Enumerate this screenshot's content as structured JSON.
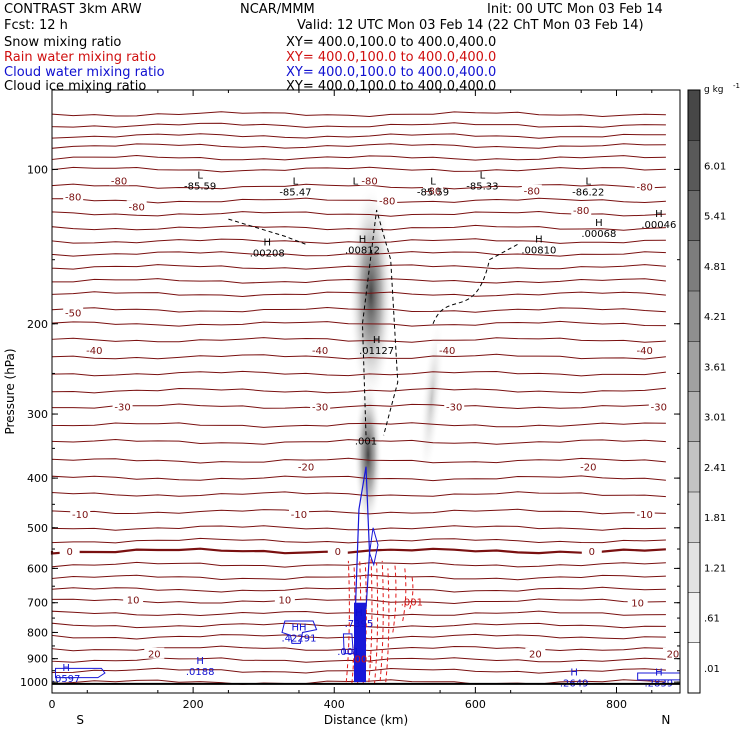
{
  "header": {
    "model": "CONTRAST  3km ARW",
    "org": "NCAR/MMM",
    "init": "Init: 00 UTC Mon 03 Feb 14",
    "fcst": "Fcst:   12 h",
    "valid": "Valid: 12 UTC Mon 03 Feb 14 (22 ChT Mon 03 Feb 14)",
    "fields": [
      {
        "label": "Snow mixing ratio",
        "xy": "XY= 400.0,100.0 to 400.0,400.0",
        "color": "#000000"
      },
      {
        "label": "Rain water mixing ratio",
        "xy": "XY= 400.0,100.0 to 400.0,400.0",
        "color": "#d01010"
      },
      {
        "label": "Cloud water mixing ratio",
        "xy": "XY= 400.0,100.0 to 400.0,400.0",
        "color": "#1010d0"
      },
      {
        "label": "Cloud ice mixing ratio",
        "xy": "XY= 400.0,100.0 to 400.0,400.0",
        "color": "#000000"
      }
    ]
  },
  "chart_data": {
    "type": "heatmap",
    "xlabel": "Distance (km)",
    "ylabel": "Pressure (hPa)",
    "xlim": [
      0,
      890
    ],
    "ylim": [
      1050,
      70
    ],
    "y_scale": "log",
    "x_ticks": [
      "0",
      "200",
      "400",
      "600",
      "800"
    ],
    "y_ticks": [
      "100",
      "200",
      "300",
      "400",
      "500",
      "600",
      "700",
      "800",
      "900",
      "1000"
    ],
    "x_ends": {
      "left": "S",
      "right": "N"
    },
    "colorbar": {
      "unit": "g kg",
      "unit_exp": "-1",
      "labels": [
        ".01",
        ".61",
        "1.21",
        "1.81",
        "2.41",
        "3.01",
        "3.61",
        "4.21",
        "4.81",
        "5.41",
        "6.01"
      ],
      "colors": [
        "#ffffff",
        "#f2f2f2",
        "#e3e3e3",
        "#d3d3d3",
        "#c3c3c3",
        "#b2b2b2",
        "#a1a1a1",
        "#8f8f8f",
        "#7d7d7d",
        "#6b6b6b",
        "#595959",
        "#474747"
      ]
    },
    "temperature_labels": [
      {
        "p": 105,
        "x": 95,
        "text": "-80"
      },
      {
        "p": 113,
        "x": 30,
        "text": "-80"
      },
      {
        "p": 118,
        "x": 120,
        "text": "-80"
      },
      {
        "p": 105,
        "x": 450,
        "text": "-80"
      },
      {
        "p": 115,
        "x": 475,
        "text": "-80"
      },
      {
        "p": 110,
        "x": 540,
        "text": "-80"
      },
      {
        "p": 110,
        "x": 680,
        "text": "-80"
      },
      {
        "p": 120,
        "x": 750,
        "text": "-80"
      },
      {
        "p": 108,
        "x": 840,
        "text": "-80"
      },
      {
        "p": 190,
        "x": 30,
        "text": "-50"
      },
      {
        "p": 225,
        "x": 60,
        "text": "-40"
      },
      {
        "p": 225,
        "x": 380,
        "text": "-40"
      },
      {
        "p": 225,
        "x": 560,
        "text": "-40"
      },
      {
        "p": 225,
        "x": 840,
        "text": "-40"
      },
      {
        "p": 290,
        "x": 100,
        "text": "-30"
      },
      {
        "p": 290,
        "x": 380,
        "text": "-30"
      },
      {
        "p": 290,
        "x": 570,
        "text": "-30"
      },
      {
        "p": 290,
        "x": 860,
        "text": "-30"
      },
      {
        "p": 380,
        "x": 360,
        "text": "-20"
      },
      {
        "p": 380,
        "x": 760,
        "text": "-20"
      },
      {
        "p": 470,
        "x": 40,
        "text": "-10"
      },
      {
        "p": 470,
        "x": 350,
        "text": "-10"
      },
      {
        "p": 470,
        "x": 840,
        "text": "-10"
      },
      {
        "p": 555,
        "x": 25,
        "text": "0"
      },
      {
        "p": 555,
        "x": 405,
        "text": "0"
      },
      {
        "p": 555,
        "x": 765,
        "text": "0"
      },
      {
        "p": 690,
        "x": 115,
        "text": "10"
      },
      {
        "p": 690,
        "x": 330,
        "text": "10"
      },
      {
        "p": 700,
        "x": 830,
        "text": "10"
      },
      {
        "p": 880,
        "x": 145,
        "text": "20"
      },
      {
        "p": 880,
        "x": 685,
        "text": "20"
      },
      {
        "p": 880,
        "x": 880,
        "text": "20"
      }
    ],
    "extrema": [
      {
        "x": 210,
        "p": 105,
        "mark": "L",
        "value": "-85.59",
        "color": "#000000"
      },
      {
        "x": 345,
        "p": 108,
        "mark": "L",
        "value": "-85.47",
        "color": "#000000"
      },
      {
        "x": 430,
        "p": 108,
        "mark": "L",
        "value": "",
        "color": "#000000"
      },
      {
        "x": 540,
        "p": 108,
        "mark": "L",
        "value": "-85.59",
        "color": "#000000"
      },
      {
        "x": 610,
        "p": 105,
        "mark": "L",
        "value": "-85.33",
        "color": "#000000"
      },
      {
        "x": 760,
        "p": 108,
        "mark": "L",
        "value": "-86.22",
        "color": "#000000"
      },
      {
        "x": 305,
        "p": 142,
        "mark": "H",
        "value": ".00208",
        "color": "#000000"
      },
      {
        "x": 440,
        "p": 140,
        "mark": "H",
        "value": ".00812",
        "color": "#000000"
      },
      {
        "x": 690,
        "p": 140,
        "mark": "H",
        "value": ".00810",
        "color": "#000000"
      },
      {
        "x": 775,
        "p": 130,
        "mark": "H",
        "value": ".00068",
        "color": "#000000"
      },
      {
        "x": 860,
        "p": 125,
        "mark": "H",
        "value": ".00046",
        "color": "#000000"
      },
      {
        "x": 460,
        "p": 220,
        "mark": "H",
        "value": ".01127",
        "color": "#000000"
      },
      {
        "x": 445,
        "p": 330,
        "mark": "",
        "value": ".001",
        "color": "#000000"
      },
      {
        "x": 510,
        "p": 680,
        "mark": "",
        "value": ".001",
        "color": "#d01010"
      },
      {
        "x": 435,
        "p": 750,
        "mark": "H",
        "value": ".7395",
        "color": "#1010d0"
      },
      {
        "x": 350,
        "p": 800,
        "mark": "HH",
        "value": ".42291",
        "color": "#1010d0"
      },
      {
        "x": 420,
        "p": 850,
        "mark": "",
        "value": ".001",
        "color": "#1010d0"
      },
      {
        "x": 440,
        "p": 880,
        "mark": "",
        "value": ".001",
        "color": "#d01010"
      },
      {
        "x": 210,
        "p": 930,
        "mark": "H",
        "value": ".0188",
        "color": "#1010d0"
      },
      {
        "x": 20,
        "p": 960,
        "mark": "H",
        "value": ".0597",
        "color": "#1010d0"
      },
      {
        "x": 740,
        "p": 980,
        "mark": "H",
        "value": ".2649",
        "color": "#1010d0"
      },
      {
        "x": 860,
        "p": 980,
        "mark": "H",
        "value": ".2839",
        "color": "#1010d0"
      }
    ]
  }
}
